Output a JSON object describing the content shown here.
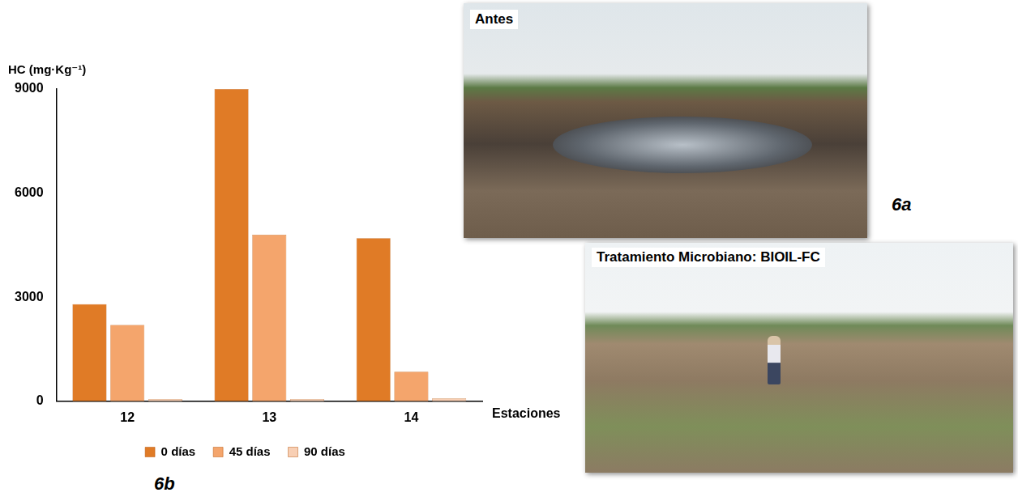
{
  "chart_data": {
    "type": "bar",
    "panel_label": "6b",
    "y_label": "HC (mg·Kg⁻¹)",
    "x_label": "Estaciones",
    "categories": [
      "12",
      "13",
      "14"
    ],
    "series": [
      {
        "name": "0 días",
        "color": "#e07b26",
        "values": [
          2800,
          9000,
          4700
        ]
      },
      {
        "name": "45 días",
        "color": "#f4a56c",
        "values": [
          2200,
          4800,
          850
        ]
      },
      {
        "name": "90 días",
        "color": "#f8cfb4",
        "values": [
          60,
          60,
          80
        ]
      }
    ],
    "ylim": [
      0,
      9000
    ],
    "yticks": [
      0,
      3000,
      6000,
      9000
    ],
    "grid": false,
    "legend": "bottom"
  },
  "photos": [
    {
      "panel_label": "6a",
      "caption": "Antes"
    },
    {
      "caption": "Tratamiento Microbiano: BIOIL-FC"
    }
  ]
}
